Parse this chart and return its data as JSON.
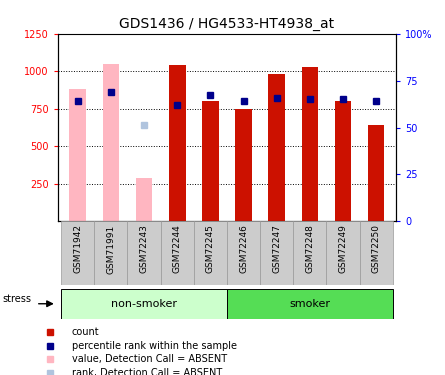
{
  "title": "GDS1436 / HG4533-HT4938_at",
  "samples": [
    "GSM71942",
    "GSM71991",
    "GSM72243",
    "GSM72244",
    "GSM72245",
    "GSM72246",
    "GSM72247",
    "GSM72248",
    "GSM72249",
    "GSM72250"
  ],
  "count_values": [
    null,
    null,
    null,
    1040,
    800,
    750,
    985,
    1030,
    800,
    640
  ],
  "count_absent": [
    880,
    1050,
    290,
    null,
    null,
    null,
    null,
    null,
    null,
    null
  ],
  "rank_values": [
    800,
    860,
    null,
    775,
    840,
    805,
    820,
    815,
    815,
    800
  ],
  "rank_absent": [
    null,
    null,
    640,
    null,
    null,
    null,
    null,
    null,
    null,
    null
  ],
  "ylim_left": [
    0,
    1250
  ],
  "ylim_right": [
    0,
    100
  ],
  "yticks_left": [
    250,
    500,
    750,
    1000,
    1250
  ],
  "yticks_right": [
    0,
    25,
    50,
    75,
    100
  ],
  "ytick_labels_right": [
    "0",
    "25",
    "50",
    "75",
    "100%"
  ],
  "count_color": "#CC1100",
  "count_absent_color": "#FFB6C1",
  "rank_color": "#00008B",
  "rank_absent_color": "#B0C4DE",
  "nonsmoker_color": "#CCFFCC",
  "smoker_color": "#55DD55",
  "xtick_bg": "#DDDDDD",
  "legend_items": [
    {
      "label": "count",
      "color": "#CC1100"
    },
    {
      "label": "percentile rank within the sample",
      "color": "#00008B"
    },
    {
      "label": "value, Detection Call = ABSENT",
      "color": "#FFB6C1"
    },
    {
      "label": "rank, Detection Call = ABSENT",
      "color": "#B0C4DE"
    }
  ]
}
